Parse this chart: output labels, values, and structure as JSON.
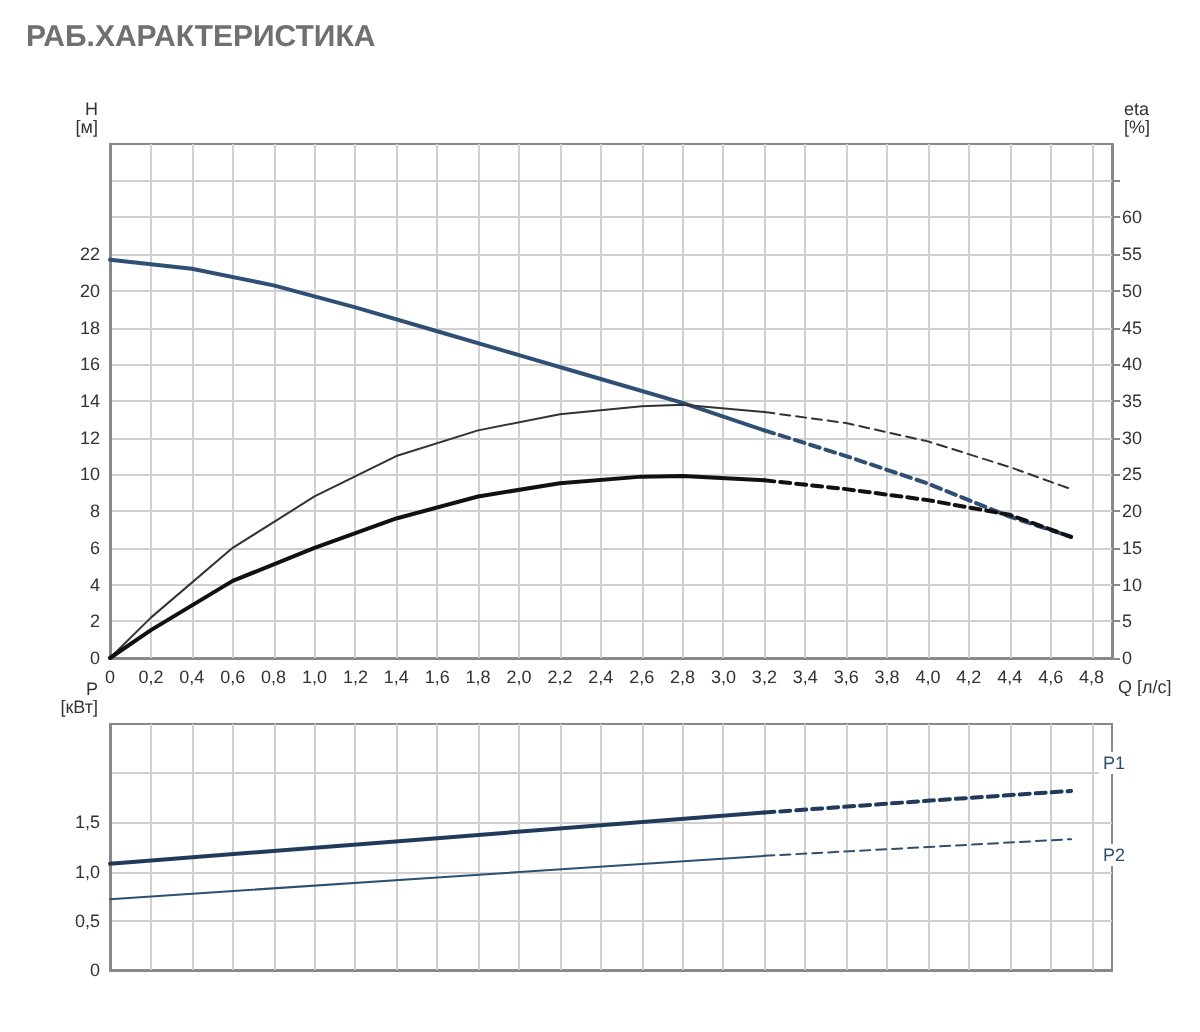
{
  "chart_data": [
    {
      "type": "line",
      "title": "РАБ.ХАРАКТЕРИСТИКА",
      "xlabel": "Q [л/с]",
      "ylabel": "H [м]",
      "y2label": "eta [%]",
      "xlim": [
        0,
        4.9
      ],
      "xticks": [
        {
          "value": 0,
          "label": "0"
        },
        {
          "value": 0.2,
          "label": "0,2"
        },
        {
          "value": 0.4,
          "label": "0,4"
        },
        {
          "value": 0.6,
          "label": "0,6"
        },
        {
          "value": 0.8,
          "label": "0,8"
        },
        {
          "value": 1.0,
          "label": "1,0"
        },
        {
          "value": 1.2,
          "label": "1,2"
        },
        {
          "value": 1.4,
          "label": "1,4"
        },
        {
          "value": 1.6,
          "label": "1,6"
        },
        {
          "value": 1.8,
          "label": "1,8"
        },
        {
          "value": 2.0,
          "label": "2,0"
        },
        {
          "value": 2.2,
          "label": "2,2"
        },
        {
          "value": 2.4,
          "label": "2,4"
        },
        {
          "value": 2.6,
          "label": "2,6"
        },
        {
          "value": 2.8,
          "label": "2,8"
        },
        {
          "value": 3.0,
          "label": "3,0"
        },
        {
          "value": 3.2,
          "label": "3,2"
        },
        {
          "value": 3.4,
          "label": "3,4"
        },
        {
          "value": 3.6,
          "label": "3,6"
        },
        {
          "value": 3.8,
          "label": "3,8"
        },
        {
          "value": 4.0,
          "label": "4,0"
        },
        {
          "value": 4.2,
          "label": "4,2"
        },
        {
          "value": 4.4,
          "label": "4,4"
        },
        {
          "value": 4.6,
          "label": "4,6"
        },
        {
          "value": 4.8,
          "label": "4,8"
        }
      ],
      "ylim": [
        0,
        28
      ],
      "yticks": [
        0,
        2,
        4,
        6,
        8,
        10,
        12,
        14,
        16,
        18,
        20,
        22,
        {
          "value": 24,
          "label": null
        },
        {
          "value": 26,
          "label": null
        }
      ],
      "y2lim": [
        0,
        70
      ],
      "y2ticks": [
        0,
        5,
        10,
        15,
        20,
        25,
        30,
        35,
        40,
        45,
        50,
        55,
        60,
        {
          "value": 65,
          "label": null
        }
      ],
      "grid": true,
      "legend": false,
      "marker": "none",
      "series": [
        {
          "color": "#2f4f75",
          "line_style": "solid",
          "x": [
            0,
            0.4,
            0.8,
            1.2,
            1.6,
            2.0,
            2.4,
            2.8,
            3.2
          ],
          "values": [
            21.7,
            21.2,
            20.3,
            19.1,
            17.8,
            16.5,
            15.2,
            13.9,
            12.4
          ]
        },
        {
          "color": "#2f4f75",
          "line_style": "dashed",
          "x": [
            3.2,
            3.6,
            4.0,
            4.4,
            4.7
          ],
          "values": [
            12.4,
            11.0,
            9.5,
            7.7,
            6.6
          ]
        },
        {
          "color": "#333333",
          "line_style": "solid",
          "axis": "y2",
          "x": [
            0,
            0.2,
            0.6,
            1.0,
            1.4,
            1.8,
            2.2,
            2.6,
            2.8,
            3.2
          ],
          "values": [
            0,
            5.5,
            15,
            22,
            27.5,
            31,
            33.2,
            34.3,
            34.5,
            33.5
          ]
        },
        {
          "color": "#333333",
          "line_style": "dashed",
          "axis": "y2",
          "x": [
            3.2,
            3.6,
            4.0,
            4.4,
            4.7
          ],
          "values": [
            33.5,
            32,
            29.5,
            26,
            23
          ]
        },
        {
          "color": "#111111",
          "line_style": "solid",
          "axis": "y2",
          "x": [
            0,
            0.2,
            0.6,
            1.0,
            1.4,
            1.8,
            2.2,
            2.6,
            2.8,
            3.2
          ],
          "values": [
            0,
            3.8,
            10.5,
            15,
            19,
            22,
            23.8,
            24.7,
            24.8,
            24.2
          ]
        },
        {
          "color": "#111111",
          "line_style": "dashed",
          "axis": "y2",
          "x": [
            3.2,
            3.6,
            4.0,
            4.4,
            4.7
          ],
          "values": [
            24.2,
            23,
            21.5,
            19.5,
            16.5
          ]
        }
      ]
    },
    {
      "type": "line",
      "ylabel": "P [кВт]",
      "xlim": [
        0,
        4.9
      ],
      "tick_labels": "y",
      "xticks": [
        0,
        0.2,
        0.4,
        0.6,
        0.8,
        1.0,
        1.2,
        1.4,
        1.6,
        1.8,
        2.0,
        2.2,
        2.4,
        2.6,
        2.8,
        3.0,
        3.2,
        3.4,
        3.6,
        3.8,
        4.0,
        4.2,
        4.4,
        4.6,
        4.8
      ],
      "ylim": [
        0,
        2.5
      ],
      "yticks": [
        0,
        {
          "value": 0.5,
          "label": "0,5"
        },
        {
          "value": 1.0,
          "label": "1,0"
        },
        {
          "value": 1.5,
          "label": "1,5"
        },
        {
          "value": 2.0,
          "label": null
        }
      ],
      "grid": true,
      "legend": false,
      "marker": "none",
      "series": [
        {
          "color": "#1f3a5a",
          "line_style": "solid",
          "x": [
            0,
            1.6,
            3.2
          ],
          "values": [
            1.08,
            1.34,
            1.6
          ]
        },
        {
          "name": "P1",
          "color": "#1f3a5a",
          "line_style": "dashed",
          "x": [
            3.2,
            4.0,
            4.7
          ],
          "values": [
            1.6,
            1.72,
            1.82
          ]
        },
        {
          "color": "#2e5070",
          "line_style": "solid",
          "x": [
            0,
            1.6,
            3.2
          ],
          "values": [
            0.72,
            0.94,
            1.16
          ]
        },
        {
          "name": "P2",
          "color": "#2e5070",
          "line_style": "dashed",
          "x": [
            3.2,
            4.0,
            4.7
          ],
          "values": [
            1.16,
            1.25,
            1.33
          ]
        }
      ]
    }
  ]
}
